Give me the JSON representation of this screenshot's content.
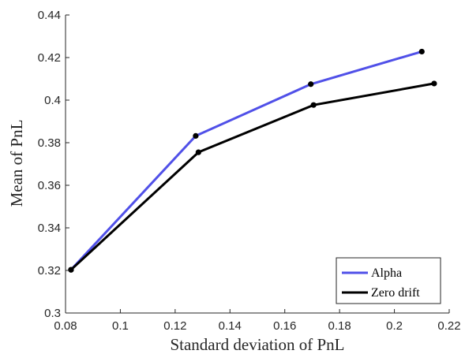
{
  "chart_data": {
    "type": "line",
    "xlabel": "Standard deviation of PnL",
    "ylabel": "Mean of PnL",
    "xlim": [
      0.08,
      0.22
    ],
    "ylim": [
      0.3,
      0.44
    ],
    "xticks": [
      "0.08",
      "0.1",
      "0.12",
      "0.14",
      "0.16",
      "0.18",
      "0.2",
      "0.22"
    ],
    "yticks": [
      "0.3",
      "0.32",
      "0.34",
      "0.36",
      "0.38",
      "0.4",
      "0.42",
      "0.44"
    ],
    "grid": false,
    "legend_position": "bottom-right",
    "series": [
      {
        "name": "Alpha",
        "color": "#5050e8",
        "marker_color": "#000000",
        "x": [
          0.082,
          0.1275,
          0.1695,
          0.21
        ],
        "y": [
          0.3203,
          0.3832,
          0.4075,
          0.4228
        ]
      },
      {
        "name": "Zero drift",
        "color": "#000000",
        "marker_color": "#000000",
        "x": [
          0.082,
          0.1285,
          0.1705,
          0.2145
        ],
        "y": [
          0.3203,
          0.3755,
          0.3977,
          0.4078
        ]
      }
    ]
  }
}
